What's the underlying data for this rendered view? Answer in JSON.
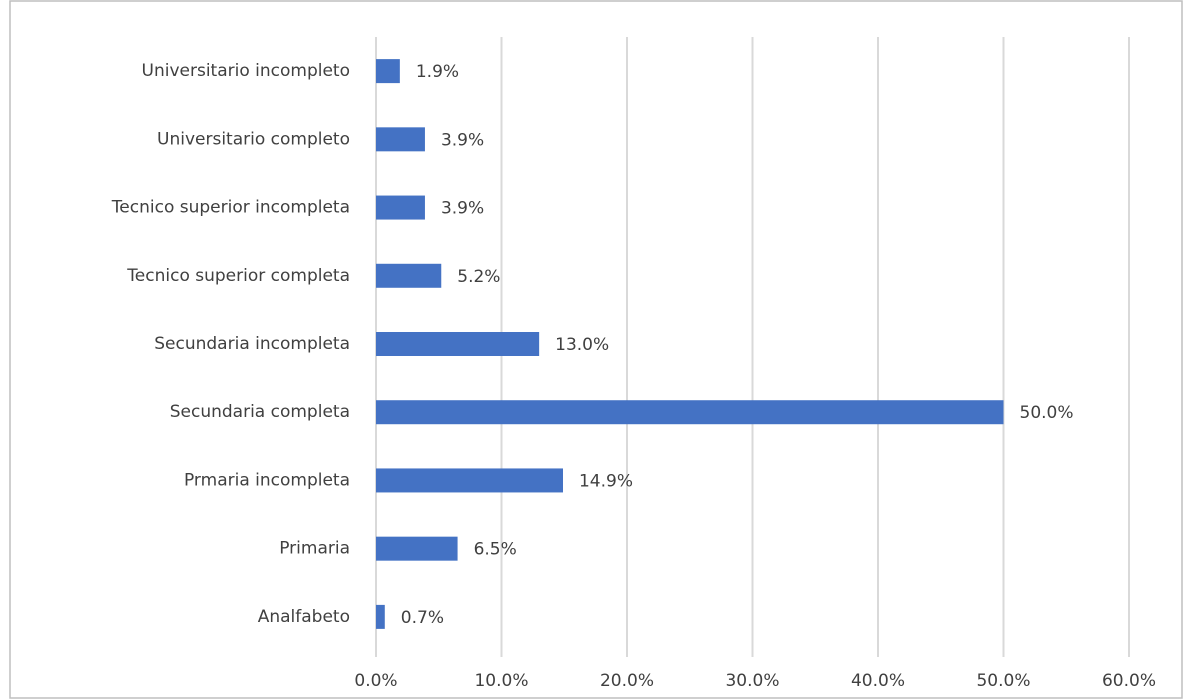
{
  "chart_data": {
    "type": "hbar",
    "categories": [
      "Universitario incompleto",
      "Universitario completo",
      "Tecnico superior incompleta",
      "Tecnico superior completa",
      "Secundaria incompleta",
      "Secundaria completa",
      "Prmaria incompleta",
      "Primaria",
      "Analfabeto"
    ],
    "values": [
      1.9,
      3.9,
      3.9,
      5.2,
      13.0,
      50.0,
      14.9,
      6.5,
      0.7
    ],
    "value_labels": [
      "1.9%",
      "3.9%",
      "3.9%",
      "5.2%",
      "13.0%",
      "50.0%",
      "14.9%",
      "6.5%",
      "0.7%"
    ],
    "color": "#4472c4",
    "xlim": [
      0,
      60
    ],
    "xticks": [
      {
        "value": 0,
        "label": "0.0%"
      },
      {
        "value": 10,
        "label": "10.0%"
      },
      {
        "value": 20,
        "label": "20.0%"
      },
      {
        "value": 30,
        "label": "30.0%"
      },
      {
        "value": 40,
        "label": "40.0%"
      },
      {
        "value": 50,
        "label": "50.0%"
      },
      {
        "value": 60,
        "label": "60.0%"
      }
    ],
    "grid": true
  }
}
